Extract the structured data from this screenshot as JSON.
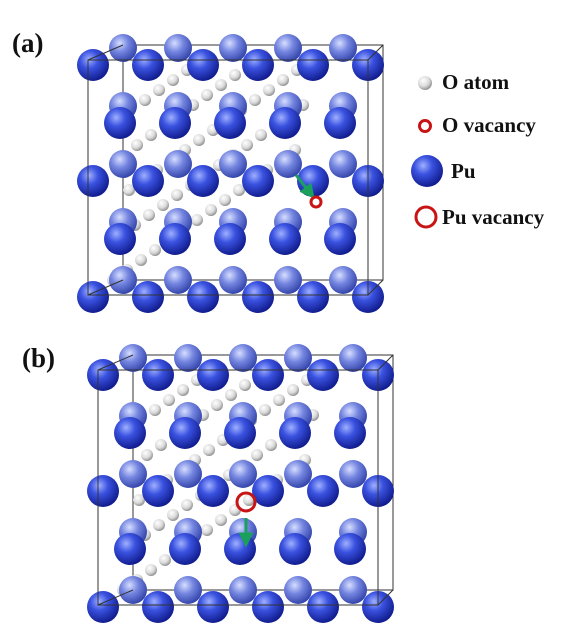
{
  "panels": [
    {
      "id": "a",
      "label": "(a)",
      "o_vacancy_marker": true,
      "pu_vacancy_marker": false
    },
    {
      "id": "b",
      "label": "(b)",
      "o_vacancy_marker": false,
      "pu_vacancy_marker": true
    }
  ],
  "legend": {
    "o_atom": "O atom",
    "o_vacancy": "O vacancy",
    "pu": "Pu",
    "pu_vacancy": "Pu vacancy"
  },
  "colors": {
    "pu_dark": "#1b2fc4",
    "pu_light": "#5b6fd8",
    "o_atom": "#d4d4d4",
    "vacancy": "#c81414",
    "arrow": "#1aa05a",
    "cell_edge": "#333333"
  }
}
